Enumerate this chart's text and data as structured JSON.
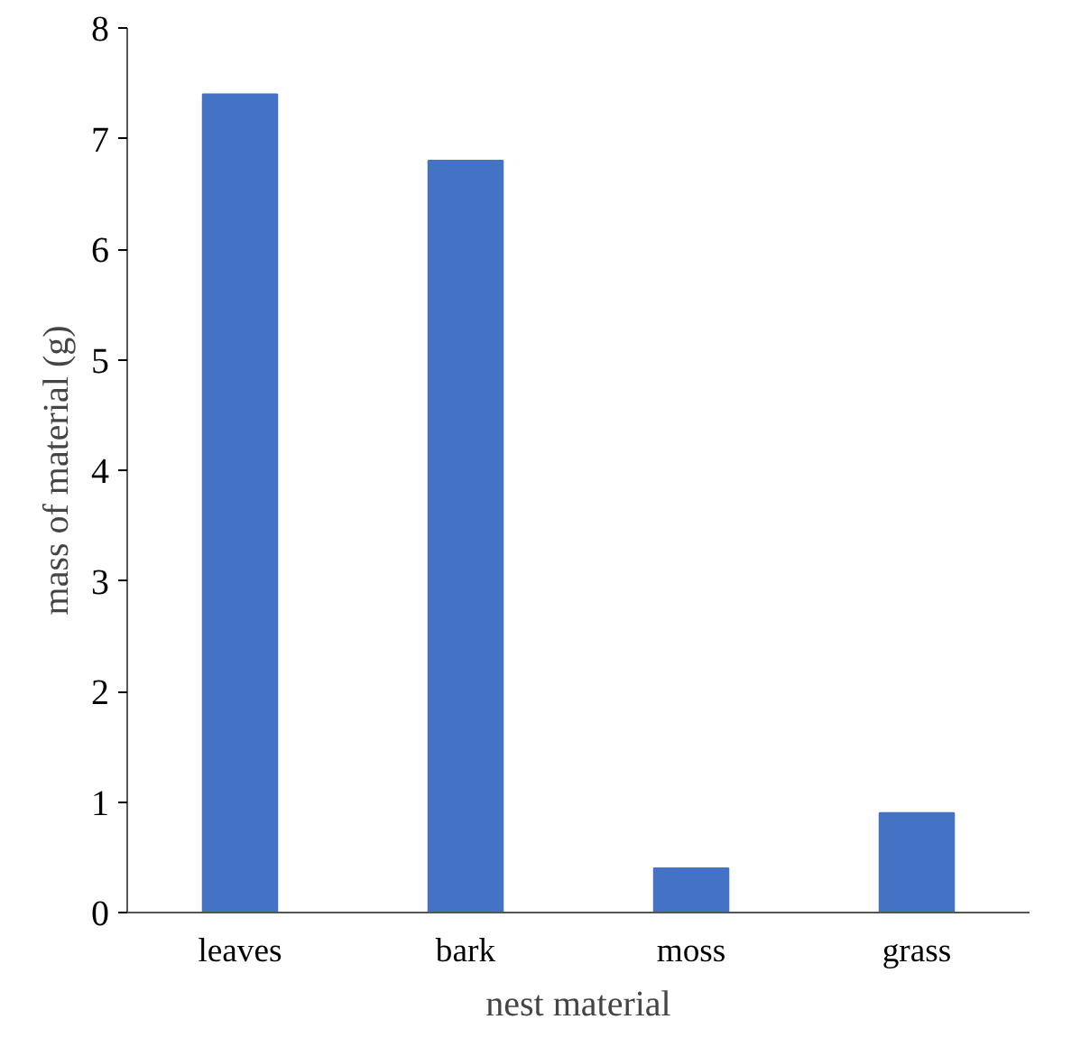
{
  "chart_data": {
    "type": "bar",
    "xlabel": "nest material",
    "ylabel": "mass of material (g)",
    "categories": [
      "leaves",
      "bark",
      "moss",
      "grass"
    ],
    "values": [
      7.4,
      6.8,
      0.4,
      0.9
    ],
    "color": "#4472c4",
    "ylim": [
      0,
      8
    ],
    "yticks": [
      0,
      1,
      2,
      3,
      4,
      5,
      6,
      7,
      8
    ],
    "grid": false
  }
}
